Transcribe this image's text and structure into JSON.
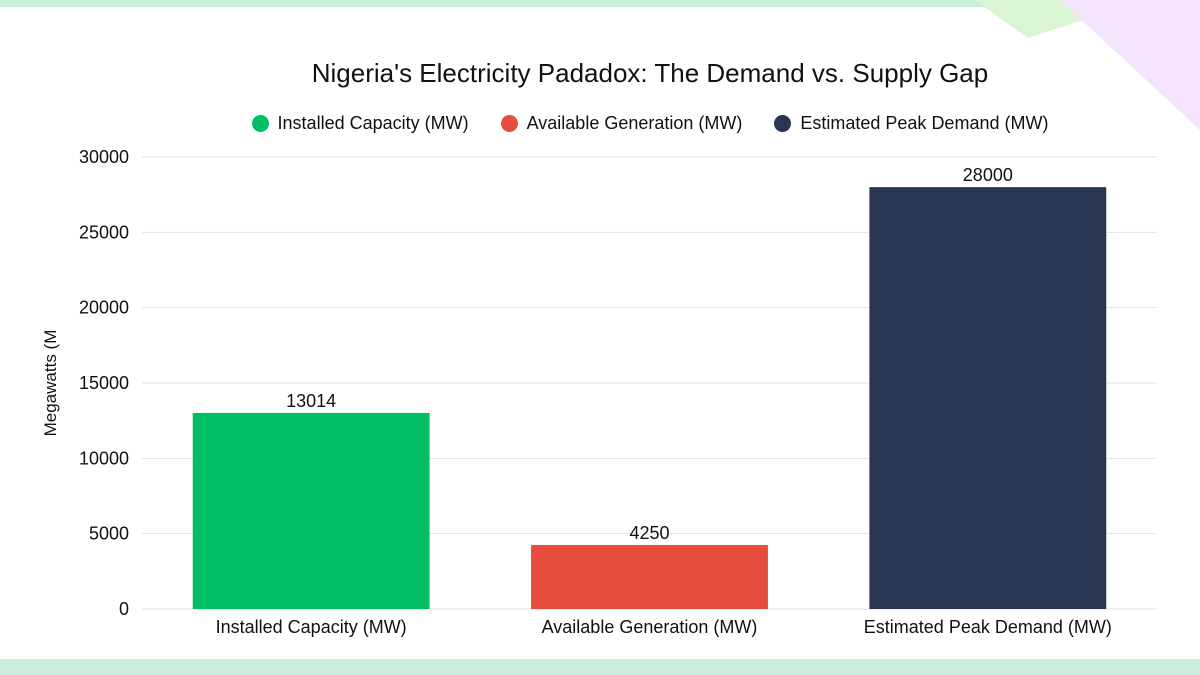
{
  "colors": {
    "band": "#c9eedb",
    "installed": "#00be64",
    "available": "#e74c3c",
    "peak": "#283654",
    "grid": "#e2e2e2"
  },
  "chart_data": {
    "type": "bar",
    "title": "Nigeria's Electricity Padadox: The Demand vs. Supply Gap",
    "xlabel": "",
    "ylabel": "Megawatts (M",
    "ylim": [
      0,
      30000
    ],
    "yticks": [
      0,
      5000,
      10000,
      15000,
      20000,
      25000,
      30000
    ],
    "grid": true,
    "legend_position": "top-center",
    "categories": [
      "Installed Capacity (MW)",
      "Available Generation (MW)",
      "Estimated Peak Demand (MW)"
    ],
    "values": [
      13014,
      4250,
      28000
    ],
    "data_labels": [
      "13014",
      "4250",
      "28000"
    ],
    "colors": [
      "#00be64",
      "#e74c3c",
      "#283654"
    ],
    "legend": [
      {
        "label": "Installed Capacity (MW)",
        "color": "#00be64"
      },
      {
        "label": "Available Generation (MW)",
        "color": "#e74c3c"
      },
      {
        "label": "Estimated Peak Demand (MW)",
        "color": "#283654"
      }
    ]
  }
}
